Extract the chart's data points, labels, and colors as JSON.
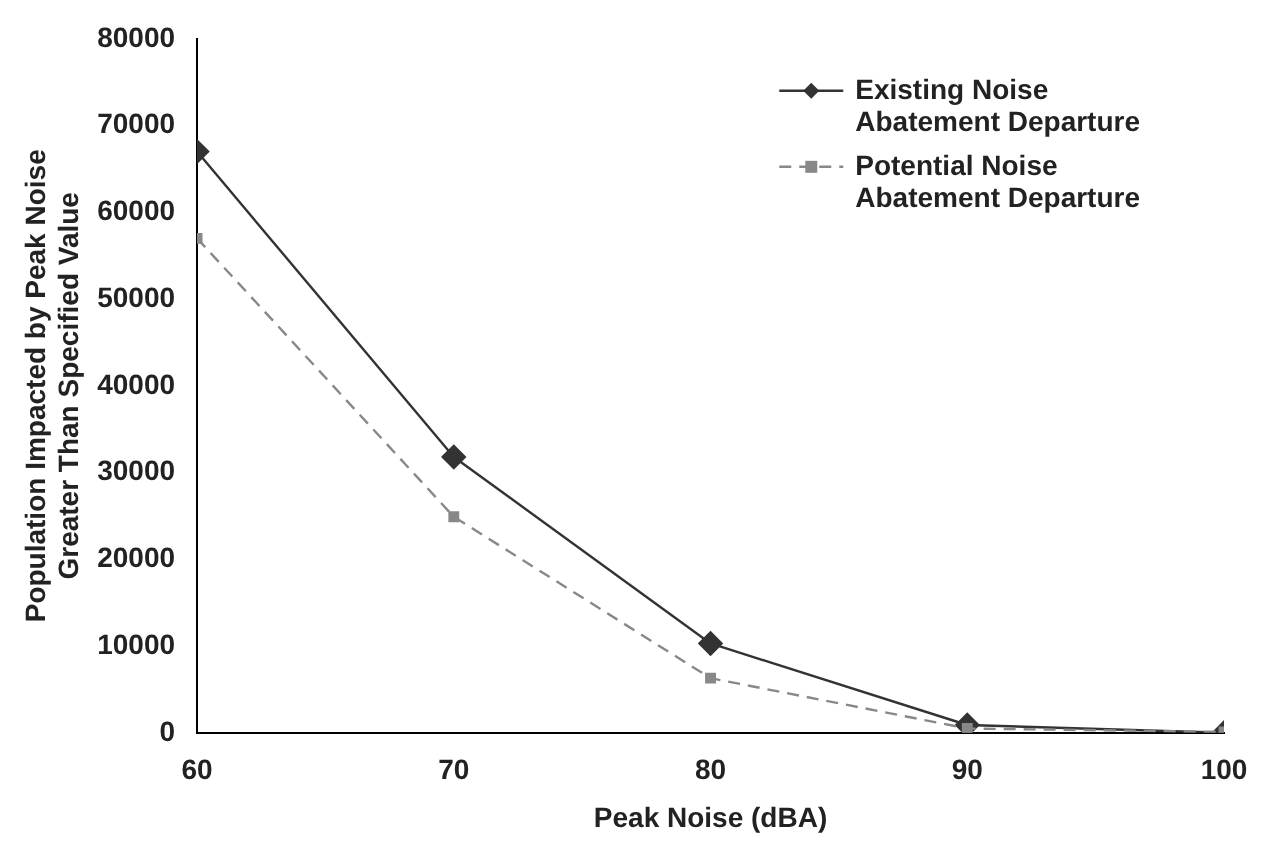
{
  "chart_data": {
    "type": "line",
    "xlabel": "Peak Noise (dBA)",
    "ylabel": "Population Impacted by Peak Noise Greater Than Specified Value",
    "x": [
      60,
      70,
      80,
      90,
      100
    ],
    "xlim": [
      60,
      100
    ],
    "xticks": [
      60,
      70,
      80,
      90,
      100
    ],
    "ylim": [
      0,
      80000
    ],
    "yticks": [
      0,
      10000,
      20000,
      30000,
      40000,
      50000,
      60000,
      70000,
      80000
    ],
    "grid": false,
    "legend": "top right",
    "series": [
      {
        "name": "Existing Noise Abatement Departure",
        "color": "#333333",
        "marker": "diamond",
        "line_style": "solid",
        "values": [
          67000,
          31800,
          10300,
          900,
          0
        ]
      },
      {
        "name": "Potential Noise Abatement Departure",
        "color": "#888888",
        "marker": "square",
        "line_style": "dashed",
        "values": [
          57000,
          24900,
          6300,
          500,
          100
        ]
      }
    ]
  }
}
